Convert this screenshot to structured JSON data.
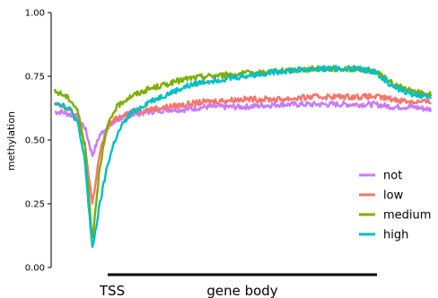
{
  "chart_data": {
    "type": "line",
    "title": "",
    "xlabel": "",
    "ylabel": "methylation",
    "ylim": [
      0,
      1
    ],
    "y_ticks": [
      "0.00",
      "0.25",
      "0.50",
      "0.75",
      "1.00"
    ],
    "y_tick_values": [
      0,
      0.25,
      0.5,
      0.75,
      1
    ],
    "x_region_labels": {
      "tss": "TSS",
      "gene_body": "gene body"
    },
    "grid": false,
    "legend_position": "right",
    "series": [
      {
        "name": "not",
        "color": "#C77CFF",
        "x": [
          0,
          0.02,
          0.04,
          0.06,
          0.08,
          0.1,
          0.12,
          0.14,
          0.16,
          0.18,
          0.2,
          0.25,
          0.3,
          0.35,
          0.4,
          0.5,
          0.6,
          0.7,
          0.8,
          0.85,
          0.9,
          0.95,
          1.0
        ],
        "y": [
          0.61,
          0.61,
          0.6,
          0.59,
          0.55,
          0.44,
          0.52,
          0.55,
          0.57,
          0.59,
          0.6,
          0.61,
          0.62,
          0.62,
          0.63,
          0.63,
          0.64,
          0.64,
          0.64,
          0.64,
          0.63,
          0.63,
          0.62
        ]
      },
      {
        "name": "low",
        "color": "#F8766D",
        "x": [
          0,
          0.02,
          0.04,
          0.06,
          0.08,
          0.1,
          0.12,
          0.14,
          0.16,
          0.18,
          0.2,
          0.25,
          0.3,
          0.35,
          0.4,
          0.5,
          0.6,
          0.7,
          0.8,
          0.85,
          0.9,
          0.95,
          1.0
        ],
        "y": [
          0.64,
          0.63,
          0.62,
          0.58,
          0.48,
          0.25,
          0.45,
          0.55,
          0.58,
          0.6,
          0.61,
          0.62,
          0.63,
          0.64,
          0.65,
          0.66,
          0.66,
          0.67,
          0.67,
          0.67,
          0.66,
          0.65,
          0.65
        ]
      },
      {
        "name": "medium",
        "color": "#7CAE00",
        "x": [
          0,
          0.02,
          0.04,
          0.06,
          0.08,
          0.1,
          0.12,
          0.14,
          0.16,
          0.18,
          0.2,
          0.25,
          0.3,
          0.35,
          0.4,
          0.5,
          0.6,
          0.7,
          0.8,
          0.85,
          0.9,
          0.95,
          1.0
        ],
        "y": [
          0.69,
          0.68,
          0.66,
          0.62,
          0.48,
          0.11,
          0.4,
          0.55,
          0.62,
          0.65,
          0.67,
          0.7,
          0.72,
          0.74,
          0.75,
          0.76,
          0.77,
          0.78,
          0.78,
          0.77,
          0.72,
          0.69,
          0.68
        ]
      },
      {
        "name": "high",
        "color": "#00BFC4",
        "x": [
          0,
          0.02,
          0.04,
          0.06,
          0.08,
          0.1,
          0.12,
          0.14,
          0.16,
          0.18,
          0.2,
          0.25,
          0.3,
          0.35,
          0.4,
          0.5,
          0.6,
          0.7,
          0.8,
          0.85,
          0.9,
          0.95,
          1.0
        ],
        "y": [
          0.65,
          0.64,
          0.62,
          0.57,
          0.42,
          0.07,
          0.25,
          0.4,
          0.5,
          0.56,
          0.6,
          0.65,
          0.68,
          0.71,
          0.73,
          0.75,
          0.77,
          0.78,
          0.78,
          0.77,
          0.71,
          0.68,
          0.67
        ]
      }
    ]
  }
}
